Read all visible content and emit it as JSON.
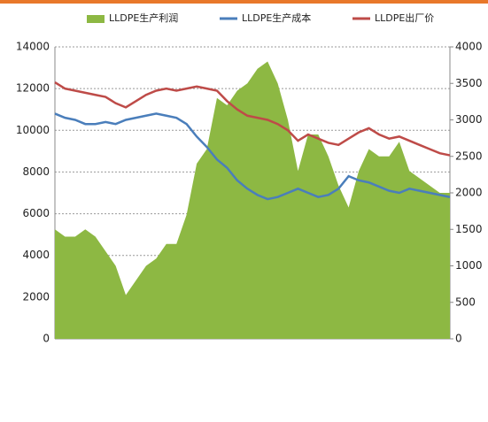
{
  "chart_data": {
    "type": "line",
    "series": [
      {
        "name": "LLDPE生产利润",
        "color": "#8db843",
        "kind": "area",
        "axis": "y2",
        "values": [
          1500,
          1400,
          1400,
          1500,
          1400,
          1200,
          1000,
          600,
          800,
          1000,
          1100,
          1300,
          1300,
          1700,
          2400,
          2600,
          3300,
          3200,
          3400,
          3500,
          3700,
          3800,
          3500,
          3000,
          2300,
          2800,
          2800,
          2500,
          2100,
          1800,
          2300,
          2600,
          2500,
          2500,
          2700,
          2300,
          2200,
          2100,
          2000,
          2000
        ]
      },
      {
        "name": "LLDPE生产成本",
        "color": "#4a7ebb",
        "kind": "line",
        "values": [
          10800,
          10600,
          10500,
          10300,
          10300,
          10400,
          10300,
          10500,
          10600,
          10700,
          10800,
          10700,
          10600,
          10300,
          9700,
          9200,
          8600,
          8200,
          7600,
          7200,
          6900,
          6700,
          6800,
          7000,
          7200,
          7000,
          6800,
          6900,
          7200,
          7800,
          7600,
          7500,
          7300,
          7100,
          7000,
          7200,
          7100,
          7000,
          6900,
          6800
        ]
      },
      {
        "name": "LLDPE出厂价",
        "color": "#be4b48",
        "kind": "line",
        "values": [
          12300,
          12000,
          11900,
          11800,
          11700,
          11600,
          11300,
          11100,
          11400,
          11700,
          11900,
          12000,
          11900,
          12000,
          12100,
          12000,
          11900,
          11400,
          11000,
          10700,
          10600,
          10500,
          10300,
          10000,
          9500,
          9800,
          9600,
          9400,
          9300,
          9600,
          9900,
          10100,
          9800,
          9600,
          9700,
          9500,
          9300,
          9100,
          8900,
          8800
        ]
      }
    ],
    "ylim": [
      0,
      14000
    ],
    "yticks": [
      0,
      2000,
      4000,
      6000,
      8000,
      10000,
      12000,
      14000
    ],
    "y2lim": [
      0,
      4000
    ],
    "y2ticks": [
      0,
      500,
      1000,
      1500,
      2000,
      2500,
      3000,
      3500,
      4000
    ],
    "grid": true
  }
}
